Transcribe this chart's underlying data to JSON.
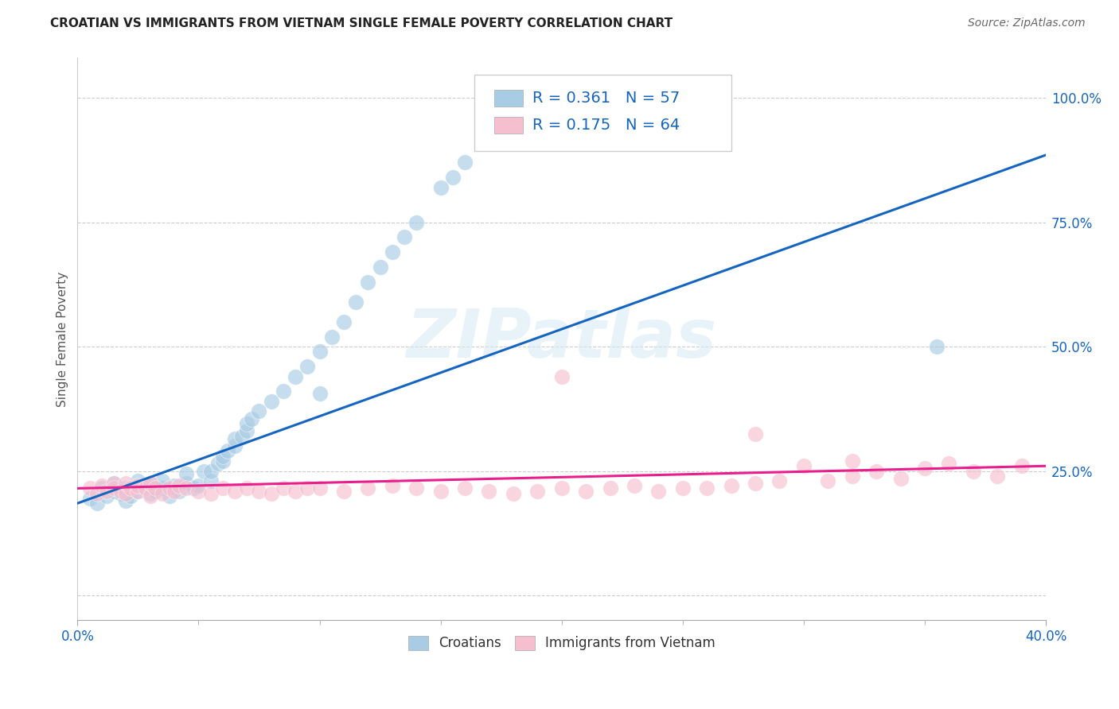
{
  "title": "CROATIAN VS IMMIGRANTS FROM VIETNAM SINGLE FEMALE POVERTY CORRELATION CHART",
  "source": "Source: ZipAtlas.com",
  "ylabel": "Single Female Poverty",
  "xlim": [
    0.0,
    0.4
  ],
  "ylim": [
    -0.05,
    1.08
  ],
  "blue_R": "0.361",
  "blue_N": "57",
  "pink_R": "0.175",
  "pink_N": "64",
  "blue_color": "#a8cce4",
  "pink_color": "#f5bfcf",
  "blue_line_color": "#1565C0",
  "pink_line_color": "#E91E8C",
  "legend_label_blue": "Croatians",
  "legend_label_pink": "Immigrants from Vietnam",
  "watermark": "ZIPatlas",
  "accent_blue": "#1565C0",
  "ytick_vals": [
    0.0,
    0.25,
    0.5,
    0.75,
    1.0
  ],
  "ytick_labels": [
    "",
    "25.0%",
    "50.0%",
    "75.0%",
    "100.0%"
  ],
  "blue_trend_x": [
    0.0,
    0.4
  ],
  "blue_trend_y": [
    0.185,
    0.885
  ],
  "pink_trend_x": [
    0.0,
    0.4
  ],
  "pink_trend_y": [
    0.215,
    0.26
  ],
  "blue_x": [
    0.005,
    0.008,
    0.01,
    0.012,
    0.015,
    0.015,
    0.018,
    0.02,
    0.02,
    0.022,
    0.025,
    0.025,
    0.028,
    0.03,
    0.03,
    0.032,
    0.035,
    0.035,
    0.038,
    0.04,
    0.042,
    0.045,
    0.045,
    0.048,
    0.05,
    0.052,
    0.055,
    0.055,
    0.058,
    0.06,
    0.06,
    0.062,
    0.065,
    0.065,
    0.068,
    0.07,
    0.07,
    0.072,
    0.075,
    0.08,
    0.085,
    0.09,
    0.095,
    0.1,
    0.105,
    0.11,
    0.115,
    0.12,
    0.125,
    0.13,
    0.135,
    0.14,
    0.15,
    0.155,
    0.16,
    0.355,
    0.1
  ],
  "blue_y": [
    0.195,
    0.185,
    0.215,
    0.2,
    0.21,
    0.225,
    0.205,
    0.19,
    0.215,
    0.2,
    0.21,
    0.23,
    0.22,
    0.205,
    0.225,
    0.21,
    0.215,
    0.23,
    0.2,
    0.22,
    0.21,
    0.225,
    0.245,
    0.215,
    0.22,
    0.25,
    0.23,
    0.25,
    0.265,
    0.27,
    0.28,
    0.29,
    0.3,
    0.315,
    0.32,
    0.33,
    0.345,
    0.355,
    0.37,
    0.39,
    0.41,
    0.44,
    0.46,
    0.49,
    0.52,
    0.55,
    0.59,
    0.63,
    0.66,
    0.69,
    0.72,
    0.75,
    0.82,
    0.84,
    0.87,
    0.5,
    0.405
  ],
  "pink_x": [
    0.005,
    0.008,
    0.01,
    0.012,
    0.015,
    0.015,
    0.018,
    0.02,
    0.02,
    0.022,
    0.025,
    0.025,
    0.028,
    0.03,
    0.03,
    0.032,
    0.035,
    0.038,
    0.04,
    0.042,
    0.045,
    0.05,
    0.055,
    0.06,
    0.065,
    0.07,
    0.075,
    0.08,
    0.085,
    0.09,
    0.095,
    0.1,
    0.11,
    0.12,
    0.13,
    0.14,
    0.15,
    0.16,
    0.17,
    0.18,
    0.19,
    0.2,
    0.21,
    0.22,
    0.23,
    0.24,
    0.25,
    0.26,
    0.27,
    0.28,
    0.29,
    0.3,
    0.31,
    0.32,
    0.33,
    0.34,
    0.35,
    0.36,
    0.37,
    0.38,
    0.39,
    0.2,
    0.28,
    0.32
  ],
  "pink_y": [
    0.215,
    0.205,
    0.22,
    0.21,
    0.225,
    0.215,
    0.21,
    0.205,
    0.225,
    0.215,
    0.21,
    0.22,
    0.215,
    0.2,
    0.225,
    0.215,
    0.205,
    0.215,
    0.21,
    0.22,
    0.215,
    0.21,
    0.205,
    0.215,
    0.21,
    0.215,
    0.21,
    0.205,
    0.215,
    0.21,
    0.215,
    0.215,
    0.21,
    0.215,
    0.22,
    0.215,
    0.21,
    0.215,
    0.21,
    0.205,
    0.21,
    0.215,
    0.21,
    0.215,
    0.22,
    0.21,
    0.215,
    0.215,
    0.22,
    0.225,
    0.23,
    0.26,
    0.23,
    0.24,
    0.25,
    0.235,
    0.255,
    0.265,
    0.25,
    0.24,
    0.26,
    0.44,
    0.325,
    0.27
  ]
}
